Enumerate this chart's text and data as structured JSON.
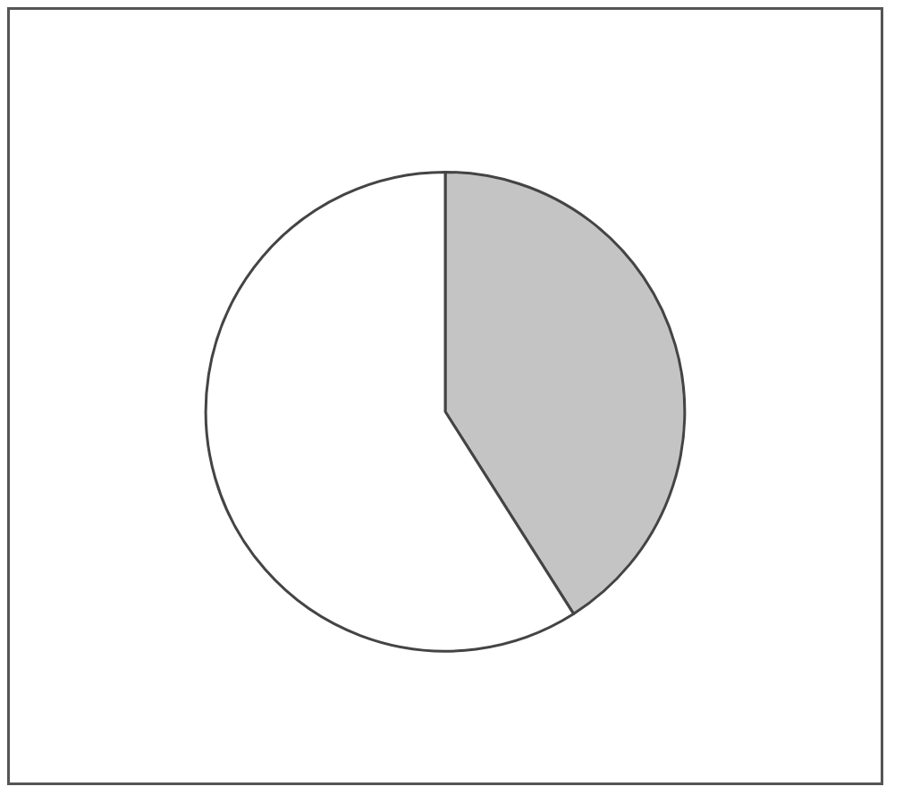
{
  "chart_data": {
    "type": "pie",
    "categories": [
      null,
      null
    ],
    "values": [
      41,
      59
    ],
    "colors": [
      "#c4c4c4",
      "#ffffff"
    ]
  }
}
